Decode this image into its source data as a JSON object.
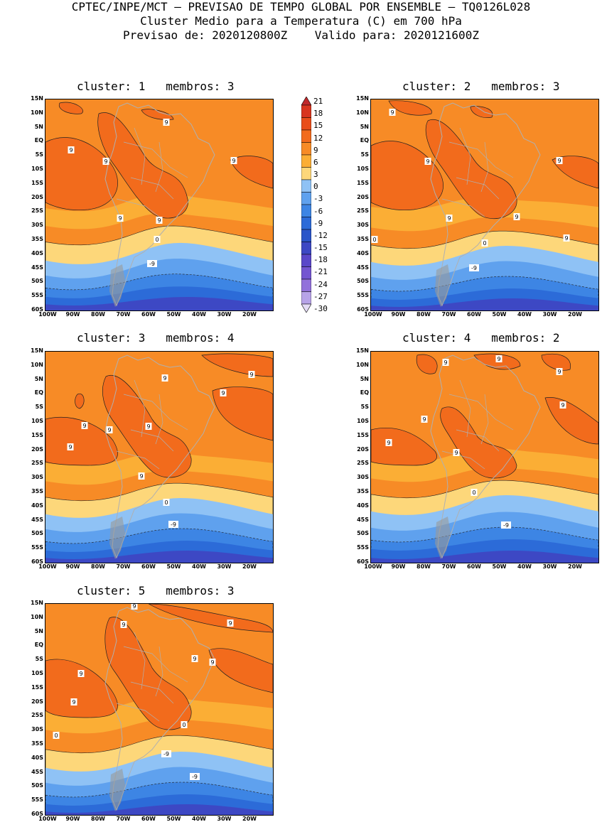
{
  "header": {
    "line1": "CPTEC/INPE/MCT – PREVISAO DE TEMPO GLOBAL POR ENSEMBLE – TQ0126L028",
    "line2": "Cluster Medio para a Temperatura (C) em 700 hPa",
    "line3": "Previsao de: 2020120800Z    Valido para: 2020121600Z"
  },
  "lat_ticks": [
    "15N",
    "10N",
    "5N",
    "EQ",
    "5S",
    "10S",
    "15S",
    "20S",
    "25S",
    "30S",
    "35S",
    "40S",
    "45S",
    "50S",
    "55S",
    "60S"
  ],
  "lon_ticks": [
    "100W",
    "90W",
    "80W",
    "70W",
    "60W",
    "50W",
    "40W",
    "30W",
    "20W"
  ],
  "colorbar": {
    "labels": [
      "21",
      "18",
      "15",
      "12",
      "9",
      "6",
      "3",
      "0",
      "-3",
      "-6",
      "-9",
      "-12",
      "-15",
      "-18",
      "-21",
      "-24",
      "-27",
      "-30"
    ],
    "colors": [
      "#c0282b",
      "#d8351f",
      "#e94e1b",
      "#f26b1c",
      "#f78b26",
      "#fbae35",
      "#fdd77a",
      "#8fc2f5",
      "#5fa1ee",
      "#3d85e4",
      "#2c6bd8",
      "#2a55c9",
      "#3d48c4",
      "#5a47c9",
      "#7455d1",
      "#9271db",
      "#b7a3e8",
      "#e4dcf5"
    ]
  },
  "panels": [
    {
      "id": "1",
      "title": "cluster: 1   membros: 3",
      "contour_labels": [
        "9",
        "9",
        "9",
        "9",
        "9",
        "9",
        "0",
        "-9"
      ]
    },
    {
      "id": "2",
      "title": "cluster: 2   membros: 3",
      "contour_labels": [
        "9",
        "9",
        "9",
        "9",
        "9",
        "9",
        "0",
        "0",
        "-9"
      ]
    },
    {
      "id": "3",
      "title": "cluster: 3   membros: 4",
      "contour_labels": [
        "9",
        "9",
        "9",
        "9",
        "9",
        "9",
        "9",
        "9",
        "0",
        "-9"
      ]
    },
    {
      "id": "4",
      "title": "cluster: 4   membros: 2",
      "contour_labels": [
        "9",
        "9",
        "9",
        "9",
        "9",
        "9",
        "9",
        "0",
        "-9"
      ]
    },
    {
      "id": "5",
      "title": "cluster: 5   membros: 3",
      "contour_labels": [
        "9",
        "9",
        "9",
        "9",
        "9",
        "9",
        "9",
        "0",
        "0",
        "-9",
        "-9"
      ]
    }
  ]
}
